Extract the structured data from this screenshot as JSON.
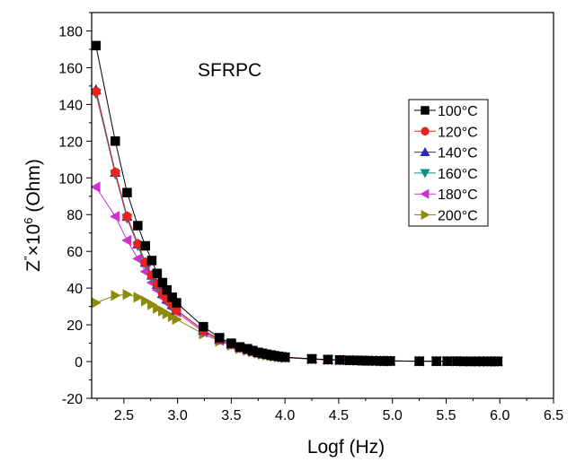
{
  "chart_data": {
    "type": "scatter",
    "title": "SFRPC",
    "xlabel": "Logf (Hz)",
    "ylabel_base": "Z",
    "ylabel_prime": "\"",
    "ylabel_times": "×10",
    "ylabel_exp": "6",
    "ylabel_unit": " (Ohm)",
    "xlim": [
      2.2,
      6.5
    ],
    "ylim": [
      -20,
      190
    ],
    "xticks": [
      2.5,
      3.0,
      3.5,
      4.0,
      4.5,
      5.0,
      5.5,
      6.0,
      6.5
    ],
    "xtick_labels": [
      "2.5",
      "3.0",
      "3.5",
      "4.0",
      "4.5",
      "5.0",
      "5.5",
      "6.0",
      "6.5"
    ],
    "yticks": [
      -20,
      0,
      20,
      40,
      60,
      80,
      100,
      120,
      140,
      160,
      180
    ],
    "ytick_labels": [
      "-20",
      "0",
      "20",
      "40",
      "60",
      "80",
      "100",
      "120",
      "140",
      "160",
      "180"
    ],
    "grid": false,
    "legend_position": "top-right",
    "series": [
      {
        "name": "100°C",
        "marker": "square",
        "color": "#000000",
        "x": [
          2.24,
          2.42,
          2.53,
          2.63,
          2.7,
          2.76,
          2.81,
          2.86,
          2.9,
          2.95,
          2.99,
          3.24,
          3.39,
          3.5,
          3.58,
          3.65,
          3.7,
          3.75,
          3.79,
          3.83,
          3.87,
          3.9,
          3.94,
          3.97,
          4.0,
          4.25,
          4.4,
          4.51,
          4.6,
          4.67,
          4.72,
          4.77,
          4.81,
          4.85,
          4.89,
          4.92,
          4.95,
          4.98,
          5.25,
          5.41,
          5.51,
          5.6,
          5.66,
          5.72,
          5.77,
          5.81,
          5.85,
          5.89,
          5.92,
          5.95,
          5.98
        ],
        "y": [
          172,
          120,
          92,
          74,
          63,
          55,
          48,
          43,
          39,
          35,
          32,
          19,
          13,
          10,
          8,
          7,
          6,
          5,
          4.5,
          4,
          3.6,
          3.2,
          2.9,
          2.6,
          2.4,
          1.5,
          1.1,
          0.9,
          0.7,
          0.6,
          0.5,
          0.5,
          0.4,
          0.4,
          0.3,
          0.3,
          0.3,
          0.3,
          0.2,
          0.2,
          0.2,
          0.2,
          0.1,
          0.1,
          0.1,
          0.1,
          0.1,
          0.1,
          0.1,
          0.1,
          0.1
        ]
      },
      {
        "name": "120°C",
        "marker": "circle",
        "color": "#e8231e",
        "x": [
          2.24,
          2.42,
          2.53,
          2.63,
          2.7,
          2.76,
          2.81,
          2.86,
          2.9,
          2.95,
          2.99,
          3.24,
          3.39,
          3.5,
          3.58,
          3.65,
          3.7,
          3.75,
          3.79,
          3.83,
          3.87,
          3.9,
          3.94,
          3.97,
          4.0,
          4.25,
          4.4,
          4.51,
          4.6,
          4.67,
          4.72,
          4.77,
          4.81,
          4.85,
          4.89,
          4.92,
          4.95,
          4.98,
          5.25,
          5.41,
          5.51,
          5.6,
          5.66,
          5.72,
          5.77,
          5.81,
          5.85,
          5.89,
          5.92,
          5.95,
          5.98
        ],
        "y": [
          147,
          103,
          79,
          64,
          54,
          47,
          42,
          37,
          34,
          31,
          28,
          17,
          12,
          9.5,
          7.5,
          6.5,
          5.5,
          4.8,
          4.2,
          3.8,
          3.4,
          3.0,
          2.7,
          2.5,
          2.3,
          1.4,
          1.0,
          0.8,
          0.7,
          0.6,
          0.5,
          0.4,
          0.4,
          0.4,
          0.3,
          0.3,
          0.3,
          0.3,
          0.2,
          0.2,
          0.2,
          0.2,
          0.1,
          0.1,
          0.1,
          0.1,
          0.1,
          0.1,
          0.1,
          0.1,
          0.1
        ]
      },
      {
        "name": "140°C",
        "marker": "triangle-up",
        "color": "#2a2ab8",
        "x": [
          2.24,
          2.42,
          2.53,
          2.63,
          2.7,
          2.76,
          2.81,
          2.86,
          2.9,
          2.95,
          2.99,
          3.24,
          3.39,
          3.5,
          3.58,
          3.65,
          3.7,
          3.75,
          3.79,
          3.83,
          3.87,
          3.9,
          3.94,
          3.97,
          4.0,
          4.25,
          4.4,
          4.51,
          4.6,
          4.67,
          4.72,
          4.77,
          4.81,
          4.85,
          4.89,
          4.92,
          4.95,
          4.98,
          5.25,
          5.41,
          5.51,
          5.6,
          5.66,
          5.72,
          5.77,
          5.81,
          5.85,
          5.89,
          5.92,
          5.95,
          5.98
        ],
        "y": [
          148,
          103,
          79,
          64,
          54,
          47,
          42,
          37,
          34,
          31,
          28,
          17,
          12,
          9.5,
          7.5,
          6.5,
          5.5,
          4.8,
          4.2,
          3.8,
          3.4,
          3.0,
          2.7,
          2.5,
          2.3,
          1.4,
          1.0,
          0.8,
          0.7,
          0.6,
          0.5,
          0.4,
          0.4,
          0.4,
          0.3,
          0.3,
          0.3,
          0.3,
          0.2,
          0.2,
          0.2,
          0.2,
          0.1,
          0.1,
          0.1,
          0.1,
          0.1,
          0.1,
          0.1,
          0.1,
          0.1
        ]
      },
      {
        "name": "160°C",
        "marker": "triangle-down",
        "color": "#0e8a8a",
        "x": [
          2.24,
          2.42,
          2.53,
          2.63,
          2.7,
          2.76,
          2.81,
          2.86,
          2.9,
          2.95,
          2.99,
          3.24,
          3.39,
          3.5,
          3.58,
          3.65,
          3.7,
          3.75,
          3.79,
          3.83,
          3.87,
          3.9,
          3.94,
          3.97,
          4.0,
          4.25,
          4.4,
          4.51,
          4.6,
          4.67,
          4.72,
          4.77,
          4.81,
          4.85,
          4.89,
          4.92,
          4.95,
          4.98,
          5.25,
          5.41,
          5.51,
          5.6,
          5.66,
          5.72,
          5.77,
          5.81,
          5.85,
          5.89,
          5.92,
          5.95,
          5.98
        ],
        "y": [
          146,
          102,
          78,
          63,
          53,
          46,
          41,
          37,
          33,
          30,
          28,
          17,
          12,
          9.3,
          7.4,
          6.4,
          5.4,
          4.7,
          4.1,
          3.7,
          3.3,
          3.0,
          2.7,
          2.4,
          2.2,
          1.4,
          1.0,
          0.8,
          0.7,
          0.6,
          0.5,
          0.4,
          0.4,
          0.3,
          0.3,
          0.3,
          0.3,
          0.3,
          0.2,
          0.2,
          0.2,
          0.2,
          0.1,
          0.1,
          0.1,
          0.1,
          0.1,
          0.1,
          0.1,
          0.1,
          0.1
        ]
      },
      {
        "name": "180°C",
        "marker": "triangle-left",
        "color": "#cc33cc",
        "x": [
          2.24,
          2.42,
          2.53,
          2.63,
          2.7,
          2.76,
          2.81,
          2.86,
          2.9,
          2.95,
          2.99,
          3.24,
          3.39,
          3.5,
          3.58,
          3.65,
          3.7,
          3.75,
          3.79,
          3.83,
          3.87,
          3.9,
          3.94,
          3.97,
          4.0,
          4.25,
          4.4,
          4.51,
          4.6,
          4.67,
          4.72,
          4.77,
          4.81,
          4.85,
          4.89,
          4.92,
          4.95,
          4.98,
          5.25,
          5.41,
          5.51,
          5.6,
          5.66,
          5.72,
          5.77,
          5.81,
          5.85,
          5.89,
          5.92,
          5.95,
          5.98
        ],
        "y": [
          95,
          79,
          66,
          56,
          49,
          43,
          39,
          35,
          32,
          29,
          27,
          16,
          11.5,
          9,
          7.2,
          6.2,
          5.3,
          4.6,
          4.0,
          3.6,
          3.2,
          2.9,
          2.6,
          2.4,
          2.2,
          1.3,
          1.0,
          0.8,
          0.7,
          0.6,
          0.5,
          0.4,
          0.4,
          0.3,
          0.3,
          0.3,
          0.3,
          0.3,
          0.2,
          0.2,
          0.2,
          0.2,
          0.1,
          0.1,
          0.1,
          0.1,
          0.1,
          0.1,
          0.1,
          0.1,
          0.1
        ]
      },
      {
        "name": "200°C",
        "marker": "triangle-right",
        "color": "#8c8c0a",
        "x": [
          2.24,
          2.42,
          2.53,
          2.63,
          2.7,
          2.76,
          2.81,
          2.86,
          2.9,
          2.95,
          2.99,
          3.24,
          3.39,
          3.5,
          3.58,
          3.65,
          3.7,
          3.75,
          3.79,
          3.83,
          3.87,
          3.9,
          3.94,
          3.97,
          4.0,
          4.25,
          4.4,
          4.51,
          4.6,
          4.67,
          4.72,
          4.77,
          4.81,
          4.85,
          4.89,
          4.92,
          4.95,
          4.98,
          5.25,
          5.41,
          5.51,
          5.6,
          5.66,
          5.72,
          5.77,
          5.81,
          5.85,
          5.89,
          5.92,
          5.95,
          5.98
        ],
        "y": [
          32,
          36,
          36.5,
          35,
          33,
          31,
          29,
          27.5,
          26,
          24.5,
          23,
          15,
          11,
          8.8,
          7.0,
          6.0,
          5.2,
          4.5,
          3.9,
          3.5,
          3.1,
          2.8,
          2.5,
          2.3,
          2.1,
          1.3,
          1.0,
          0.8,
          0.7,
          0.6,
          0.5,
          0.4,
          0.4,
          0.3,
          0.3,
          0.3,
          0.3,
          0.3,
          0.2,
          0.2,
          0.2,
          0.2,
          0.1,
          0.1,
          0.1,
          0.1,
          0.1,
          0.1,
          0.1,
          0.1,
          0.1
        ]
      }
    ]
  }
}
